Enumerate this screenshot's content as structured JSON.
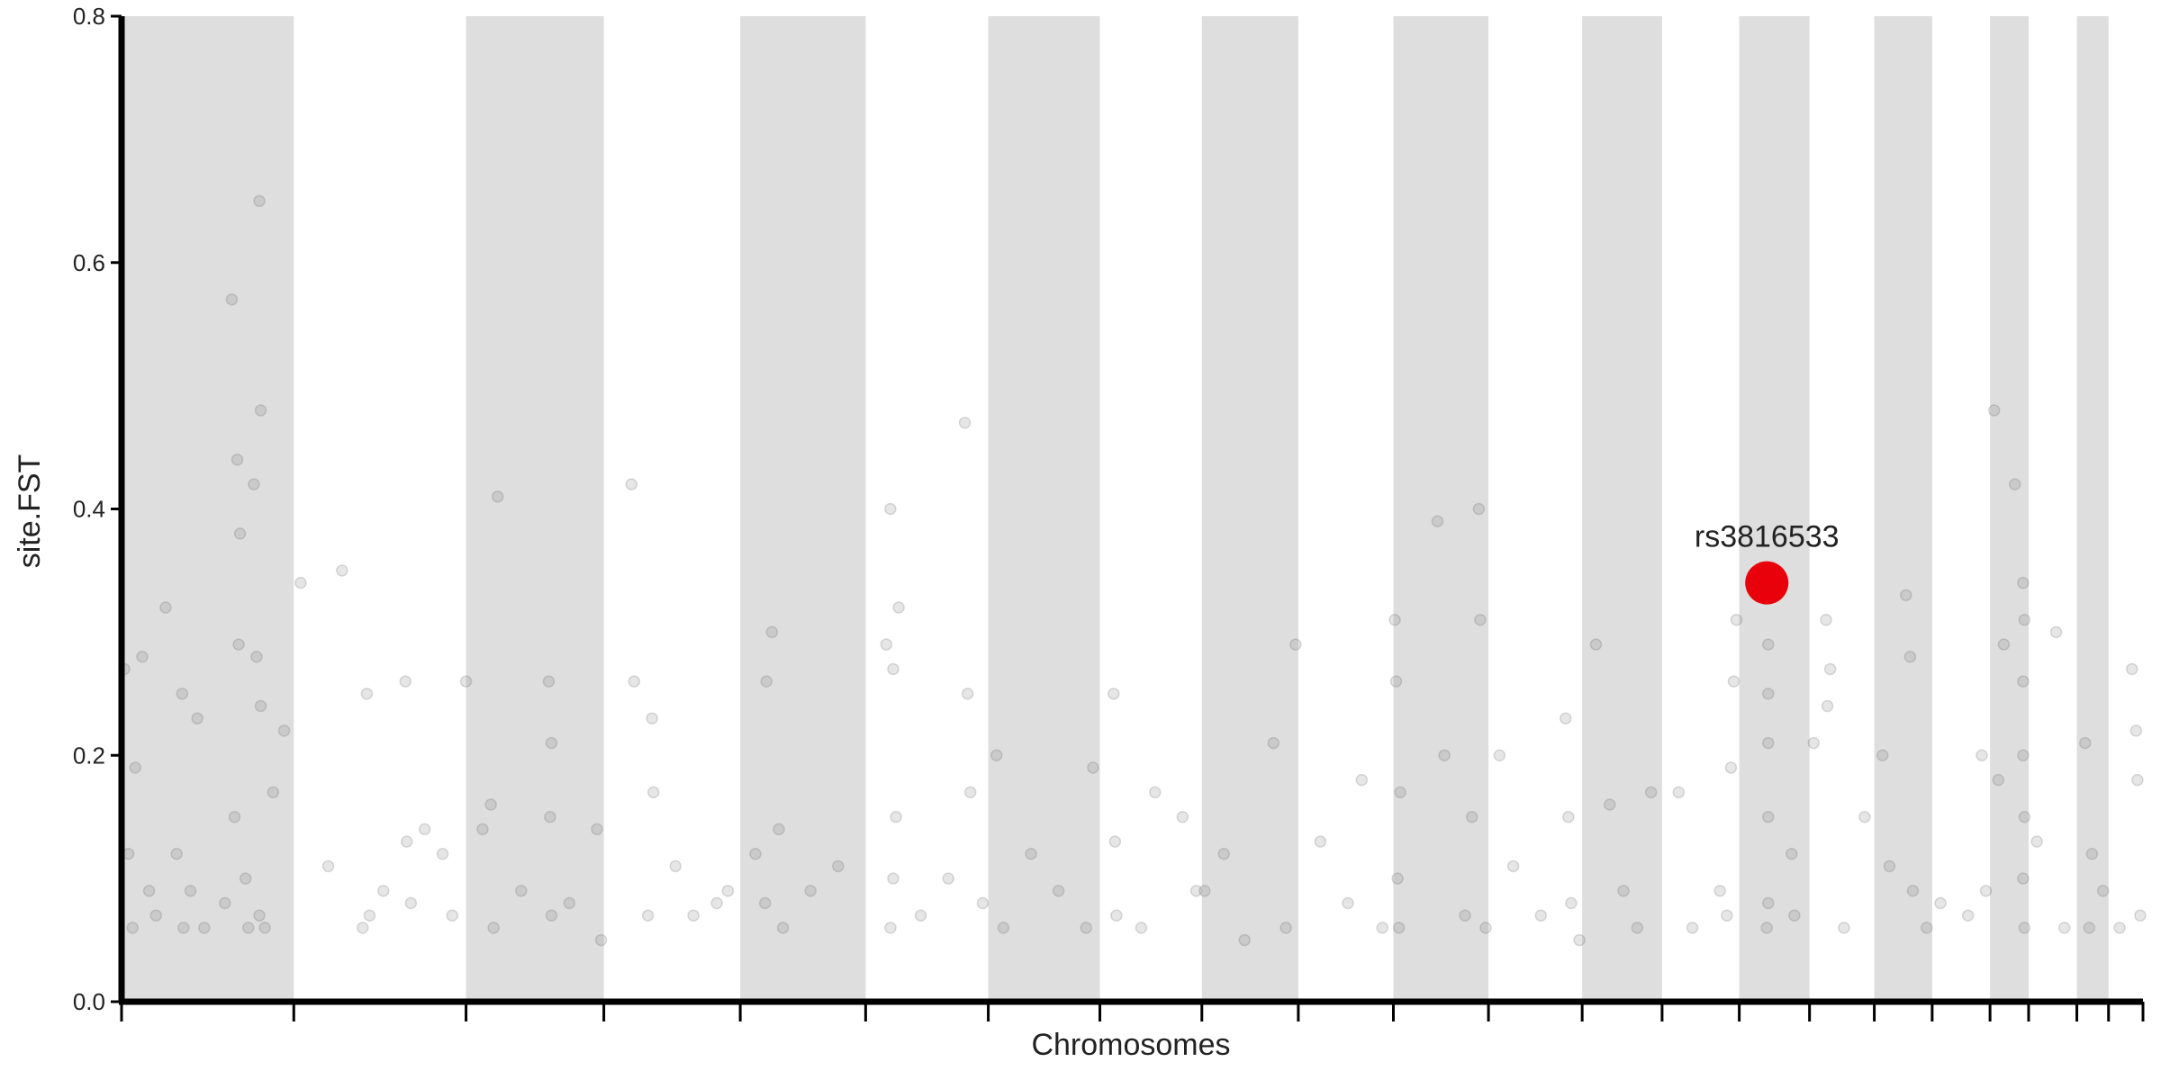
{
  "chart_data": {
    "type": "scatter",
    "x_label": "Chromosomes",
    "y_label": "site.FST",
    "xlim": [
      0,
      1467
    ],
    "ylim": [
      0,
      0.8
    ],
    "xticks": [
      0,
      125,
      250,
      350,
      449,
      540,
      629,
      710,
      784,
      854,
      923,
      992,
      1060,
      1118,
      1174,
      1225,
      1272,
      1314,
      1356,
      1384,
      1419,
      1442,
      1467
    ],
    "yticks": [
      {
        "value": 0,
        "label": "0.0"
      },
      0.2,
      0.4,
      0.6,
      0.8
    ],
    "shade_alternate": true,
    "shade_color": "#dedede",
    "color": "#555555",
    "x": [
      2,
      5,
      10,
      15,
      8,
      20,
      25,
      32,
      40,
      45,
      44,
      55,
      50,
      60,
      80,
      82,
      84,
      85,
      86,
      90,
      96,
      98,
      100,
      101,
      101,
      100,
      104,
      110,
      118,
      92,
      75,
      130,
      150,
      160,
      178,
      180,
      175,
      190,
      206,
      207,
      210,
      220,
      233,
      240,
      250,
      262,
      268,
      273,
      270,
      290,
      310,
      312,
      311,
      312,
      325,
      345,
      348,
      370,
      372,
      382,
      385,
      386,
      402,
      415,
      432,
      440,
      460,
      468,
      472,
      467,
      477,
      480,
      500,
      520,
      555,
      558,
      560,
      562,
      560,
      558,
      564,
      580,
      600,
      612,
      614,
      616,
      625,
      635,
      640,
      660,
      680,
      700,
      705,
      720,
      721,
      722,
      740,
      750,
      770,
      780,
      786,
      800,
      836,
      852,
      845,
      815,
      870,
      890,
      900,
      915,
      924,
      925,
      926,
      927,
      928,
      955,
      960,
      975,
      985,
      986,
      980,
      990,
      1000,
      1010,
      1030,
      1048,
      1050,
      1052,
      1058,
      1070,
      1080,
      1090,
      1100,
      1110,
      1130,
      1140,
      1160,
      1170,
      1172,
      1168,
      1165,
      1195,
      1195,
      1195,
      1195,
      1195,
      1194,
      1214,
      1212,
      1228,
      1237,
      1240,
      1238,
      1250,
      1265,
      1278,
      1283,
      1295,
      1298,
      1300,
      1310,
      1320,
      1340,
      1350,
      1353,
      1359,
      1374,
      1380,
      1381,
      1380,
      1380,
      1381,
      1380,
      1381,
      1366,
      1362,
      1404,
      1390,
      1410,
      1425,
      1430,
      1428,
      1438,
      1450,
      1459,
      1462,
      1463,
      1465
    ],
    "values": [
      0.27,
      0.12,
      0.19,
      0.28,
      0.06,
      0.09,
      0.07,
      0.32,
      0.12,
      0.06,
      0.25,
      0.23,
      0.09,
      0.06,
      0.57,
      0.15,
      0.44,
      0.29,
      0.38,
      0.1,
      0.42,
      0.28,
      0.65,
      0.48,
      0.24,
      0.07,
      0.06,
      0.17,
      0.22,
      0.06,
      0.08,
      0.34,
      0.11,
      0.35,
      0.25,
      0.07,
      0.06,
      0.09,
      0.26,
      0.13,
      0.08,
      0.14,
      0.12,
      0.07,
      0.26,
      0.14,
      0.16,
      0.41,
      0.06,
      0.09,
      0.26,
      0.21,
      0.15,
      0.07,
      0.08,
      0.14,
      0.05,
      0.42,
      0.26,
      0.07,
      0.23,
      0.17,
      0.11,
      0.07,
      0.08,
      0.09,
      0.12,
      0.26,
      0.3,
      0.08,
      0.14,
      0.06,
      0.09,
      0.11,
      0.29,
      0.4,
      0.27,
      0.15,
      0.1,
      0.06,
      0.32,
      0.07,
      0.1,
      0.47,
      0.25,
      0.17,
      0.08,
      0.2,
      0.06,
      0.12,
      0.09,
      0.06,
      0.19,
      0.25,
      0.13,
      0.07,
      0.06,
      0.17,
      0.15,
      0.09,
      0.09,
      0.12,
      0.21,
      0.29,
      0.06,
      0.05,
      0.13,
      0.08,
      0.18,
      0.06,
      0.31,
      0.26,
      0.1,
      0.06,
      0.17,
      0.39,
      0.2,
      0.07,
      0.4,
      0.31,
      0.15,
      0.06,
      0.2,
      0.11,
      0.07,
      0.23,
      0.15,
      0.08,
      0.05,
      0.29,
      0.16,
      0.09,
      0.06,
      0.17,
      0.17,
      0.06,
      0.09,
      0.26,
      0.31,
      0.19,
      0.07,
      0.29,
      0.25,
      0.21,
      0.15,
      0.08,
      0.06,
      0.07,
      0.12,
      0.21,
      0.31,
      0.27,
      0.24,
      0.06,
      0.15,
      0.2,
      0.11,
      0.33,
      0.28,
      0.09,
      0.06,
      0.08,
      0.07,
      0.2,
      0.09,
      0.48,
      0.42,
      0.34,
      0.31,
      0.26,
      0.2,
      0.15,
      0.1,
      0.06,
      0.29,
      0.18,
      0.3,
      0.13,
      0.06,
      0.21,
      0.12,
      0.06,
      0.09,
      0.06,
      0.27,
      0.22,
      0.18,
      0.07
    ],
    "highlight": {
      "label": "rs3816533",
      "x": 1194,
      "y": 0.34,
      "color": "#e8000b"
    }
  }
}
